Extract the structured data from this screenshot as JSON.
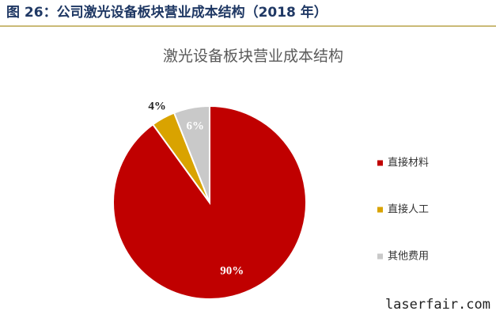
{
  "caption": "图 26：公司激光设备板块营业成本结构（2018 年）",
  "watermark": "laserfair.com",
  "chart_data": {
    "type": "pie",
    "title": "激光设备板块营业成本结构",
    "categories": [
      "直接材料",
      "直接人工",
      "其他费用"
    ],
    "values": [
      90,
      4,
      6
    ],
    "value_labels": [
      "90%",
      "4%",
      "6%"
    ],
    "colors": [
      "#c00000",
      "#d9a300",
      "#c9c9c9"
    ],
    "legend": "right"
  }
}
